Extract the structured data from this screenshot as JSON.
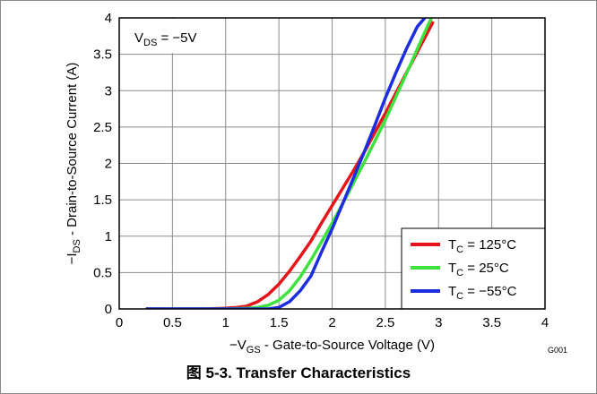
{
  "chart_data": {
    "type": "line",
    "title": "",
    "annotation": {
      "main": "V",
      "sub": "DS",
      "rest": " = −5V"
    },
    "xlabel": {
      "prefix": "−V",
      "sub": "GS",
      "rest": " - Gate-to-Source Voltage (V)"
    },
    "ylabel": {
      "prefix": "−I",
      "sub": "DS",
      "rest": " - Drain-to-Source Current (A)"
    },
    "xlim": [
      0,
      4
    ],
    "ylim": [
      0,
      4
    ],
    "x_ticks": [
      "0",
      "0.5",
      "1",
      "1.5",
      "2",
      "2.5",
      "3",
      "3.5",
      "4"
    ],
    "y_ticks": [
      "0",
      "0.5",
      "1",
      "1.5",
      "2",
      "2.5",
      "3",
      "3.5",
      "4"
    ],
    "grid": true,
    "legend_position": "bottom-right",
    "figure_id": "G001",
    "series": [
      {
        "name": {
          "main": "T",
          "sub": "C",
          "rest": " = 125°C"
        },
        "color": "#e8141b",
        "x": [
          0.25,
          0.8,
          1.0,
          1.1,
          1.2,
          1.3,
          1.4,
          1.5,
          1.6,
          1.7,
          1.8,
          1.9,
          2.0,
          2.1,
          2.2,
          2.3,
          2.4,
          2.5,
          2.6,
          2.7,
          2.8,
          2.9,
          2.95
        ],
        "y": [
          0.0,
          0.0,
          0.01,
          0.02,
          0.04,
          0.1,
          0.2,
          0.34,
          0.52,
          0.72,
          0.93,
          1.18,
          1.42,
          1.66,
          1.9,
          2.15,
          2.42,
          2.69,
          2.97,
          3.25,
          3.53,
          3.81,
          3.95
        ]
      },
      {
        "name": {
          "main": "T",
          "sub": "C",
          "rest": " = 25°C"
        },
        "color": "#3ee23e",
        "x": [
          0.25,
          1.0,
          1.2,
          1.3,
          1.4,
          1.5,
          1.6,
          1.7,
          1.8,
          1.9,
          2.0,
          2.1,
          2.2,
          2.3,
          2.4,
          2.5,
          2.6,
          2.7,
          2.8,
          2.9,
          2.95
        ],
        "y": [
          0.0,
          0.0,
          0.01,
          0.02,
          0.05,
          0.12,
          0.25,
          0.44,
          0.67,
          0.92,
          1.18,
          1.45,
          1.73,
          2.01,
          2.3,
          2.6,
          2.92,
          3.24,
          3.57,
          3.9,
          4.05
        ]
      },
      {
        "name": {
          "main": "T",
          "sub": "C",
          "rest": " = −55°C"
        },
        "color": "#1c2de0",
        "x": [
          0.25,
          1.0,
          1.4,
          1.5,
          1.6,
          1.7,
          1.8,
          1.9,
          2.0,
          2.1,
          2.2,
          2.3,
          2.4,
          2.5,
          2.6,
          2.7,
          2.8,
          2.9,
          2.93
        ],
        "y": [
          0.0,
          0.0,
          0.0,
          0.02,
          0.1,
          0.25,
          0.45,
          0.78,
          1.1,
          1.45,
          1.8,
          2.15,
          2.52,
          2.9,
          3.25,
          3.58,
          3.88,
          4.05,
          4.1
        ]
      }
    ]
  },
  "caption": "图 5-3. Transfer Characteristics"
}
